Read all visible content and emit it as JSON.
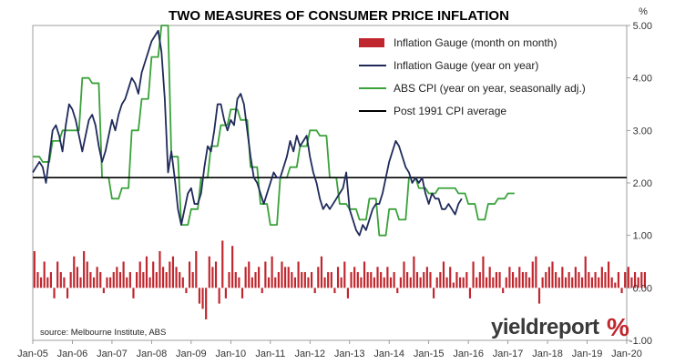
{
  "chart_data": {
    "type": "line",
    "title": "TWO MEASURES OF CONSUMER PRICE INFLATION",
    "y_unit": "%",
    "ylim": [
      -1.0,
      5.0
    ],
    "y_ticks": [
      "5.00",
      "4.00",
      "3.00",
      "2.00",
      "1.00",
      "0.00",
      "-1.00"
    ],
    "y_tick_values": [
      5,
      4,
      3,
      2,
      1,
      0,
      -1
    ],
    "x_ticks": [
      "Jan-05",
      "Jan-06",
      "Jan-07",
      "Jan-08",
      "Jan-09",
      "Jan-10",
      "Jan-11",
      "Jan-12",
      "Jan-13",
      "Jan-14",
      "Jan-15",
      "Jan-16",
      "Jan-17",
      "Jan-18",
      "Jan-19",
      "Jan-20"
    ],
    "x_start": "Jan-05",
    "x_end": "Jan-20",
    "grid": false,
    "legend_position": "top-right",
    "series": [
      {
        "name": "Inflation Gauge (month on month)",
        "kind": "bar",
        "color": "#c0262d",
        "values": [
          0.7,
          0.3,
          0.2,
          0.5,
          0.2,
          0.3,
          -0.2,
          0.5,
          0.3,
          0.2,
          -0.2,
          0.3,
          0.6,
          0.4,
          0.2,
          0.7,
          0.5,
          0.3,
          0.2,
          0.4,
          0.3,
          -0.1,
          0.2,
          0.2,
          0.3,
          0.4,
          0.3,
          0.5,
          0.2,
          0.3,
          -0.2,
          0.3,
          0.5,
          0.3,
          0.6,
          0.2,
          0.5,
          0.3,
          0.7,
          0.4,
          0.3,
          0.5,
          0.6,
          0.4,
          0.3,
          0.2,
          -0.1,
          0.5,
          0.3,
          0.7,
          -0.3,
          -0.4,
          -0.6,
          0.6,
          0.4,
          0.5,
          -0.3,
          0.9,
          -0.2,
          0.3,
          0.8,
          0.3,
          0.2,
          -0.2,
          0.4,
          0.5,
          0.2,
          0.3,
          0.4,
          -0.1,
          0.5,
          0.2,
          0.6,
          0.2,
          0.3,
          0.5,
          0.4,
          0.4,
          0.3,
          0.2,
          0.5,
          0.3,
          0.3,
          0.2,
          0.3,
          -0.1,
          0.4,
          0.6,
          0.2,
          0.3,
          0.3,
          -0.1,
          0.4,
          0.2,
          0.5,
          -0.2,
          0.3,
          0.4,
          0.3,
          0.2,
          0.5,
          0.3,
          0.3,
          0.2,
          0.4,
          0.3,
          0.2,
          0.4,
          0.2,
          0.3,
          -0.1,
          0.2,
          0.5,
          0.3,
          0.2,
          0.6,
          0.3,
          0.2,
          0.3,
          0.4,
          0.3,
          -0.2,
          0.2,
          0.3,
          0.5,
          0.2,
          0.4,
          0.1,
          0.3,
          0.2,
          0.2,
          0.3,
          -0.2,
          0.5,
          0.2,
          0.3,
          0.6,
          0.2,
          0.4,
          0.2,
          0.3,
          0.3,
          -0.1,
          0.2,
          0.4,
          0.3,
          0.2,
          0.4,
          0.3,
          0.3,
          0.2,
          0.5,
          0.6,
          -0.3,
          0.2,
          0.3,
          0.4,
          0.5,
          0.3,
          0.2,
          0.4,
          0.2,
          0.3,
          0.2,
          0.4,
          0.3,
          0.2,
          0.6,
          0.3,
          0.2,
          0.3,
          0.2,
          0.4,
          0.3,
          0.5,
          0.2,
          0.1,
          0.3,
          -0.1,
          0.3,
          0.4,
          0.2,
          0.3,
          0.2,
          0.3,
          0.3
        ]
      },
      {
        "name": "Inflation Gauge (year on year)",
        "kind": "line",
        "color": "#1f2a5a",
        "values": [
          2.2,
          2.3,
          2.4,
          2.3,
          2.0,
          2.5,
          3.0,
          3.1,
          2.9,
          2.6,
          3.1,
          3.5,
          3.4,
          3.2,
          2.9,
          2.6,
          2.9,
          3.2,
          3.3,
          3.1,
          2.7,
          2.4,
          2.6,
          2.9,
          3.2,
          3.0,
          3.3,
          3.5,
          3.6,
          3.8,
          4.0,
          3.9,
          3.7,
          4.1,
          4.3,
          4.5,
          4.7,
          4.8,
          4.9,
          4.5,
          3.6,
          2.2,
          2.6,
          2.1,
          1.5,
          1.2,
          1.5,
          1.8,
          1.9,
          1.6,
          1.6,
          1.8,
          2.3,
          2.7,
          2.6,
          3.0,
          3.5,
          3.5,
          3.2,
          3.0,
          3.2,
          3.1,
          3.6,
          3.7,
          3.5,
          3.0,
          2.5,
          2.1,
          2.0,
          1.8,
          1.6,
          1.8,
          2.0,
          2.2,
          2.1,
          2.1,
          2.3,
          2.5,
          2.8,
          2.6,
          2.9,
          2.7,
          2.8,
          2.9,
          2.5,
          2.2,
          2.0,
          1.7,
          1.5,
          1.6,
          1.5,
          1.6,
          1.7,
          1.8,
          1.9,
          2.2,
          1.5,
          1.3,
          1.1,
          1.0,
          1.2,
          1.1,
          1.3,
          1.5,
          1.6,
          1.6,
          1.8,
          2.1,
          2.4,
          2.6,
          2.8,
          2.7,
          2.5,
          2.3,
          2.2,
          2.0,
          2.1,
          2.0,
          2.1,
          1.8,
          1.6,
          1.8,
          1.7,
          1.7,
          1.5,
          1.5,
          1.6,
          1.5,
          1.4,
          1.6,
          1.7
        ]
      },
      {
        "name": "ABS CPI (year on year, seasonally adj.)",
        "kind": "line",
        "color": "#3aa23a",
        "values": [
          2.5,
          2.5,
          2.5,
          2.4,
          2.4,
          2.4,
          2.8,
          2.8,
          2.8,
          3.0,
          3.0,
          3.0,
          3.0,
          3.0,
          3.0,
          4.0,
          4.0,
          4.0,
          3.9,
          3.9,
          3.9,
          2.1,
          2.1,
          2.1,
          1.7,
          1.7,
          1.7,
          1.9,
          1.9,
          1.9,
          3.0,
          3.0,
          3.0,
          3.6,
          3.6,
          3.6,
          4.4,
          4.4,
          4.4,
          5.0,
          5.0,
          5.0,
          2.5,
          2.5,
          2.5,
          1.2,
          1.2,
          1.2,
          1.5,
          1.5,
          1.5,
          2.1,
          2.1,
          2.1,
          2.7,
          2.7,
          2.7,
          3.1,
          3.1,
          3.1,
          3.4,
          3.4,
          3.4,
          3.2,
          3.2,
          3.2,
          2.3,
          2.3,
          2.3,
          1.6,
          1.6,
          1.6,
          1.2,
          1.2,
          1.2,
          2.1,
          2.1,
          2.1,
          2.3,
          2.3,
          2.3,
          2.7,
          2.7,
          2.7,
          3.0,
          3.0,
          3.0,
          2.9,
          2.9,
          2.9,
          2.1,
          2.1,
          2.1,
          1.6,
          1.6,
          1.6,
          1.5,
          1.5,
          1.5,
          1.3,
          1.3,
          1.3,
          1.7,
          1.7,
          1.7,
          1.0,
          1.0,
          1.0,
          1.5,
          1.5,
          1.5,
          1.3,
          1.3,
          1.3,
          2.1,
          2.1,
          2.1,
          1.9,
          1.9,
          1.9,
          1.8,
          1.8,
          1.8,
          1.9,
          1.9,
          1.9,
          1.9,
          1.9,
          1.9,
          1.8,
          1.8,
          1.8,
          1.6,
          1.6,
          1.6,
          1.3,
          1.3,
          1.3,
          1.6,
          1.6,
          1.6,
          1.7,
          1.7,
          1.7,
          1.8,
          1.8,
          1.8
        ]
      },
      {
        "name": "Post 1991 CPI average",
        "kind": "hline",
        "color": "#000000",
        "value": 2.1
      }
    ]
  },
  "annotations": {
    "source": "source: Melbourne Institute, ABS",
    "brand_name": "yieldreport",
    "brand_symbol": "%"
  }
}
